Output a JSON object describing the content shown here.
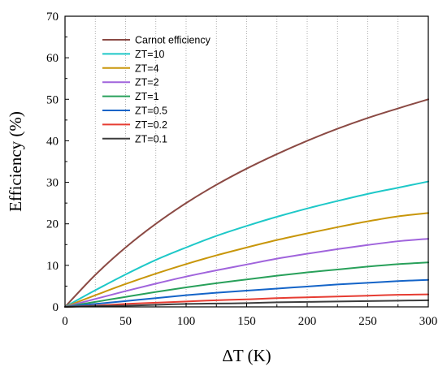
{
  "chart_data": {
    "type": "line",
    "xlabel": "ΔT (K)",
    "ylabel": "Efficiency (%)",
    "xlim": [
      0,
      300
    ],
    "ylim": [
      0,
      70
    ],
    "x_ticks": [
      0,
      50,
      100,
      150,
      200,
      250,
      300
    ],
    "y_ticks": [
      0,
      10,
      20,
      30,
      40,
      50,
      60,
      70
    ],
    "grid": "vertical dotted lines every 25 K",
    "legend_position": "top-left",
    "x": [
      0,
      25,
      50,
      75,
      100,
      125,
      150,
      175,
      200,
      225,
      250,
      275,
      300
    ],
    "series": [
      {
        "name": "Carnot efficiency",
        "color": "#8b4a44",
        "values": [
          0,
          7.7,
          14.3,
          20.0,
          25.0,
          29.4,
          33.3,
          36.8,
          40.0,
          42.9,
          45.5,
          47.8,
          50.0
        ]
      },
      {
        "name": "ZT=10",
        "color": "#1ec8c8",
        "values": [
          0,
          4.0,
          7.8,
          11.3,
          14.3,
          17.1,
          19.5,
          21.7,
          23.7,
          25.5,
          27.2,
          28.7,
          30.2
        ]
      },
      {
        "name": "ZT=4",
        "color": "#c8960a",
        "values": [
          0,
          2.8,
          5.5,
          8.0,
          10.3,
          12.4,
          14.3,
          16.1,
          17.7,
          19.2,
          20.6,
          21.8,
          22.6
        ]
      },
      {
        "name": "ZT=2",
        "color": "#a064dc",
        "values": [
          0,
          1.9,
          3.8,
          5.6,
          7.3,
          8.8,
          10.2,
          11.6,
          12.8,
          13.9,
          14.9,
          15.8,
          16.4
        ]
      },
      {
        "name": "ZT=1",
        "color": "#28a05a",
        "values": [
          0,
          1.2,
          2.4,
          3.6,
          4.7,
          5.7,
          6.6,
          7.5,
          8.3,
          9.0,
          9.7,
          10.3,
          10.7
        ]
      },
      {
        "name": "ZT=0.5",
        "color": "#1464c8",
        "values": [
          0,
          0.7,
          1.4,
          2.1,
          2.8,
          3.4,
          3.9,
          4.4,
          4.9,
          5.4,
          5.8,
          6.2,
          6.5
        ]
      },
      {
        "name": "ZT=0.2",
        "color": "#e63c32",
        "values": [
          0,
          0.3,
          0.7,
          1.0,
          1.3,
          1.6,
          1.8,
          2.1,
          2.3,
          2.5,
          2.7,
          2.9,
          3.0
        ]
      },
      {
        "name": "ZT=0.1",
        "color": "#3c3c3c",
        "values": [
          0,
          0.2,
          0.3,
          0.5,
          0.7,
          0.8,
          0.9,
          1.1,
          1.2,
          1.3,
          1.4,
          1.5,
          1.6
        ]
      }
    ]
  }
}
